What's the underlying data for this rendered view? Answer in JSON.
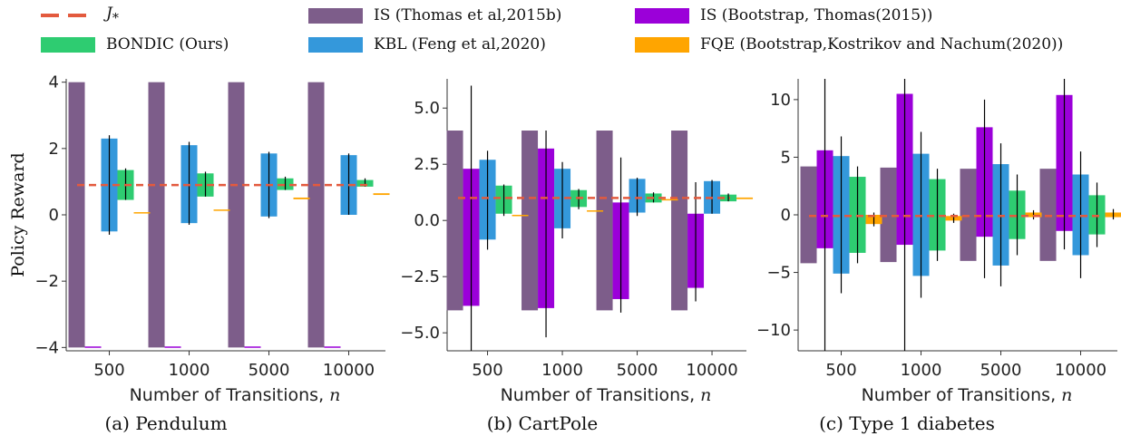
{
  "legend": [
    {
      "label": "J*",
      "style": "dash",
      "color": "#e35a3e"
    },
    {
      "label": "BONDIC (Ours)",
      "style": "box",
      "color": "#2ecc71"
    },
    {
      "label": "IS (Thomas et al,2015b)",
      "style": "box",
      "color": "#7d5d8a"
    },
    {
      "label": "KBL (Feng et al,2020)",
      "style": "box",
      "color": "#3498db"
    },
    {
      "label": "IS (Bootstrap, Thomas(2015))",
      "style": "box",
      "color": "#9b00d9"
    },
    {
      "label": "FQE (Bootstrap,Kostrikov and Nachum(2020))",
      "style": "box",
      "color": "#ffa500"
    }
  ],
  "ylabel": "Policy Reward",
  "xlabel": "Number of Transitions, n",
  "chart_data": [
    {
      "type": "bar",
      "caption": "(a) Pendulum",
      "categories": [
        "500",
        "1000",
        "5000",
        "10000"
      ],
      "ylim": [
        -4.1,
        4.1
      ],
      "yticks": [
        -4,
        -2,
        0,
        2,
        4
      ],
      "j_star": 0.9,
      "series": [
        {
          "name": "IS (Thomas et al,2015b)",
          "color": "#7d5d8a",
          "low": [
            -4,
            -4,
            -4,
            -4
          ],
          "high": [
            4,
            4,
            4,
            4
          ],
          "err": [
            null,
            null,
            null,
            null
          ]
        },
        {
          "name": "IS (Bootstrap, Thomas(2015))",
          "color": "#9b00d9",
          "low": [
            -4.0,
            -4.0,
            -4.0,
            -4.0
          ],
          "high": [
            -3.97,
            -3.97,
            -3.97,
            -3.97
          ],
          "err": [
            null,
            null,
            null,
            null
          ]
        },
        {
          "name": "KBL (Feng et al,2020)",
          "color": "#3498db",
          "low": [
            -0.5,
            -0.25,
            -0.05,
            0.0
          ],
          "high": [
            2.3,
            2.1,
            1.85,
            1.8
          ],
          "err": [
            [
              -0.6,
              2.4
            ],
            [
              -0.3,
              2.2
            ],
            [
              -0.1,
              1.9
            ],
            [
              0.0,
              1.85
            ]
          ]
        },
        {
          "name": "BONDIC (Ours)",
          "color": "#2ecc71",
          "low": [
            0.45,
            0.55,
            0.75,
            0.85
          ],
          "high": [
            1.35,
            1.25,
            1.1,
            1.05
          ],
          "err": [
            [
              0.45,
              1.4
            ],
            [
              0.55,
              1.3
            ],
            [
              0.75,
              1.15
            ],
            [
              0.85,
              1.1
            ]
          ]
        },
        {
          "name": "FQE (Bootstrap,Kostrikov and Nachum(2020))",
          "color": "#ffa500",
          "low": [
            0.05,
            0.13,
            0.47,
            0.6
          ],
          "high": [
            0.08,
            0.16,
            0.52,
            0.65
          ],
          "err": [
            null,
            null,
            null,
            null
          ]
        }
      ]
    },
    {
      "type": "bar",
      "caption": "(b) CartPole",
      "categories": [
        "500",
        "1000",
        "5000",
        "10000"
      ],
      "ylim": [
        -5.8,
        6.3
      ],
      "yticks": [
        -5.0,
        -2.5,
        0.0,
        2.5,
        5.0
      ],
      "ytick_labels": [
        "−5.0",
        "−2.5",
        "0.0",
        "2.5",
        "5.0"
      ],
      "j_star": 1.0,
      "series": [
        {
          "name": "IS (Thomas et al,2015b)",
          "color": "#7d5d8a",
          "low": [
            -4,
            -4,
            -4,
            -4
          ],
          "high": [
            4,
            4,
            4,
            4
          ],
          "err": [
            null,
            null,
            null,
            null
          ]
        },
        {
          "name": "IS (Bootstrap, Thomas(2015))",
          "color": "#9b00d9",
          "low": [
            -3.8,
            -3.9,
            -3.5,
            -3.0
          ],
          "high": [
            2.3,
            3.2,
            0.8,
            0.3
          ],
          "err": [
            [
              -6.0,
              6.0
            ],
            [
              -5.2,
              4.0
            ],
            [
              -4.1,
              2.8
            ],
            [
              -3.6,
              1.7
            ]
          ]
        },
        {
          "name": "KBL (Feng et al,2020)",
          "color": "#3498db",
          "low": [
            -0.85,
            -0.35,
            0.35,
            0.3
          ],
          "high": [
            2.7,
            2.3,
            1.85,
            1.75
          ],
          "err": [
            [
              -1.3,
              3.1
            ],
            [
              -0.8,
              2.6
            ],
            [
              0.2,
              1.9
            ],
            [
              0.3,
              1.8
            ]
          ]
        },
        {
          "name": "BONDIC (Ours)",
          "color": "#2ecc71",
          "low": [
            0.3,
            0.6,
            0.8,
            0.85
          ],
          "high": [
            1.55,
            1.35,
            1.2,
            1.15
          ],
          "err": [
            [
              0.2,
              1.6
            ],
            [
              0.5,
              1.4
            ],
            [
              0.8,
              1.25
            ],
            [
              0.85,
              1.2
            ]
          ]
        },
        {
          "name": "FQE (Bootstrap,Kostrikov and Nachum(2020))",
          "color": "#ffa500",
          "low": [
            0.2,
            0.4,
            0.9,
            0.95
          ],
          "high": [
            0.25,
            0.45,
            0.95,
            1.02
          ],
          "err": [
            null,
            null,
            null,
            null
          ]
        }
      ]
    },
    {
      "type": "bar",
      "caption": "(c) Type 1 diabetes",
      "categories": [
        "500",
        "1000",
        "5000",
        "10000"
      ],
      "ylim": [
        -11.8,
        11.8
      ],
      "yticks": [
        -10,
        -5,
        0,
        5,
        10
      ],
      "j_star": -0.1,
      "series": [
        {
          "name": "IS (Thomas et al,2015b)",
          "color": "#7d5d8a",
          "low": [
            -4.2,
            -4.1,
            -4.0,
            -4.0
          ],
          "high": [
            4.2,
            4.1,
            4.0,
            4.0
          ],
          "err": [
            null,
            null,
            null,
            null
          ]
        },
        {
          "name": "IS (Bootstrap, Thomas(2015))",
          "color": "#9b00d9",
          "low": [
            -2.9,
            -2.6,
            -1.9,
            -1.4
          ],
          "high": [
            5.6,
            10.5,
            7.6,
            10.4
          ],
          "err": [
            [
              -11.8,
              11.8
            ],
            [
              -11.8,
              11.8
            ],
            [
              -5.5,
              10.0
            ],
            [
              -3.0,
              12.0
            ]
          ]
        },
        {
          "name": "KBL (Feng et al,2020)",
          "color": "#3498db",
          "low": [
            -5.1,
            -5.3,
            -4.4,
            -3.5
          ],
          "high": [
            5.1,
            5.3,
            4.4,
            3.5
          ],
          "err": [
            [
              -6.8,
              6.8
            ],
            [
              -7.2,
              7.2
            ],
            [
              -6.2,
              6.2
            ],
            [
              -5.5,
              5.5
            ]
          ]
        },
        {
          "name": "BONDIC (Ours)",
          "color": "#2ecc71",
          "low": [
            -3.3,
            -3.1,
            -2.1,
            -1.7
          ],
          "high": [
            3.3,
            3.1,
            2.1,
            1.7
          ],
          "err": [
            [
              -4.2,
              4.2
            ],
            [
              -4.0,
              4.0
            ],
            [
              -3.5,
              3.5
            ],
            [
              -2.8,
              2.8
            ]
          ]
        },
        {
          "name": "FQE (Bootstrap,Kostrikov and Nachum(2020))",
          "color": "#ffa500",
          "low": [
            -0.8,
            -0.5,
            -0.2,
            -0.2
          ],
          "high": [
            0.0,
            -0.1,
            0.2,
            0.2
          ],
          "err": [
            [
              -1.0,
              0.2
            ],
            [
              -0.7,
              0.1
            ],
            [
              -0.4,
              0.4
            ],
            [
              -0.4,
              0.5
            ]
          ]
        }
      ]
    }
  ]
}
